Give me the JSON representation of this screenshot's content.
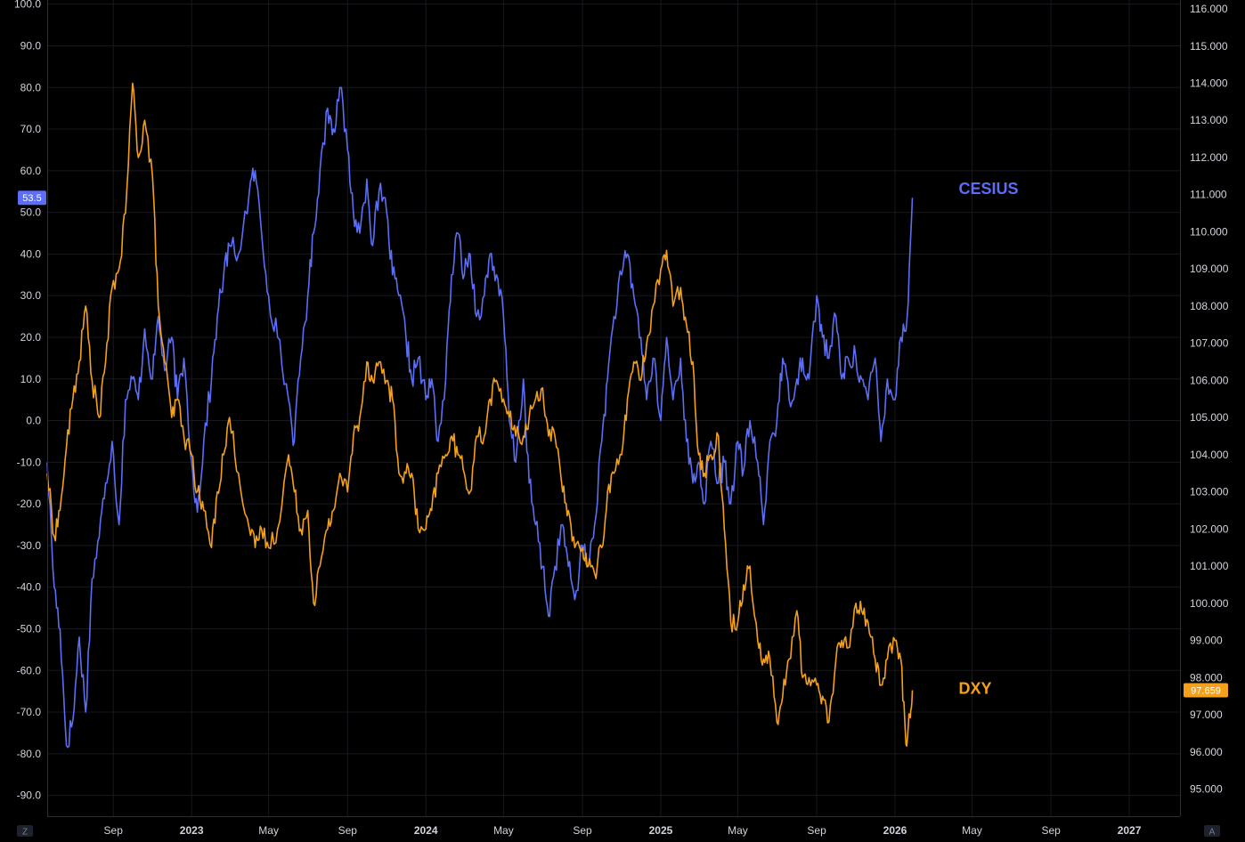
{
  "chart_data": {
    "type": "line",
    "title": "",
    "xlabel": "",
    "ylabel": "",
    "x_ticks": [
      "Sep",
      "2023",
      "May",
      "Sep",
      "2024",
      "May",
      "Sep",
      "2025",
      "May",
      "Sep",
      "2026",
      "May",
      "Sep",
      "2027"
    ],
    "x_tick_dates": [
      "2022-09-01",
      "2023-01-01",
      "2023-05-01",
      "2023-09-01",
      "2024-01-01",
      "2024-05-01",
      "2024-09-01",
      "2025-01-01",
      "2025-05-01",
      "2025-09-01",
      "2026-01-01",
      "2026-05-01",
      "2026-09-01",
      "2027-01-01"
    ],
    "xlim": [
      "2022-05-21",
      "2027-03-21"
    ],
    "left_axis": {
      "ticks": [
        "100.0",
        "90.0",
        "80.0",
        "70.0",
        "60.0",
        "50.0",
        "40.0",
        "30.0",
        "20.0",
        "10.0",
        "0.0",
        "-10.0",
        "-20.0",
        "-30.0",
        "-40.0",
        "-50.0",
        "-60.0",
        "-70.0",
        "-80.0",
        "-90.0"
      ],
      "ylim": [
        -95,
        101
      ]
    },
    "right_axis": {
      "ticks": [
        "116.000",
        "115.000",
        "114.000",
        "113.000",
        "112.000",
        "111.000",
        "110.000",
        "109.000",
        "108.000",
        "107.000",
        "106.000",
        "105.000",
        "104.000",
        "103.000",
        "102.000",
        "101.000",
        "100.000",
        "99.000",
        "98.000",
        "97.000",
        "96.000",
        "95.000"
      ],
      "ylim": [
        94.27,
        116.24
      ]
    },
    "grid": true,
    "series": [
      {
        "name": "CESIUS",
        "axis": "left",
        "color": "#5b6ef5",
        "last_value_label": "53.5",
        "points": [
          [
            "2022-05-21",
            -10
          ],
          [
            "2022-06-01",
            -40
          ],
          [
            "2022-06-10",
            -50
          ],
          [
            "2022-06-20",
            -78
          ],
          [
            "2022-06-30",
            -72
          ],
          [
            "2022-07-10",
            -52
          ],
          [
            "2022-07-20",
            -70
          ],
          [
            "2022-07-30",
            -38
          ],
          [
            "2022-08-10",
            -28
          ],
          [
            "2022-08-20",
            -15
          ],
          [
            "2022-08-30",
            -5
          ],
          [
            "2022-09-10",
            -25
          ],
          [
            "2022-09-20",
            5
          ],
          [
            "2022-10-01",
            10
          ],
          [
            "2022-10-10",
            5
          ],
          [
            "2022-10-20",
            22
          ],
          [
            "2022-11-01",
            10
          ],
          [
            "2022-11-10",
            25
          ],
          [
            "2022-11-20",
            12
          ],
          [
            "2022-12-01",
            20
          ],
          [
            "2022-12-10",
            5
          ],
          [
            "2022-12-20",
            15
          ],
          [
            "2023-01-01",
            -10
          ],
          [
            "2023-01-10",
            -22
          ],
          [
            "2023-01-20",
            -5
          ],
          [
            "2023-02-01",
            10
          ],
          [
            "2023-02-10",
            25
          ],
          [
            "2023-02-20",
            35
          ],
          [
            "2023-03-01",
            42
          ],
          [
            "2023-03-15",
            40
          ],
          [
            "2023-04-01",
            55
          ],
          [
            "2023-04-10",
            60
          ],
          [
            "2023-04-20",
            45
          ],
          [
            "2023-05-01",
            30
          ],
          [
            "2023-05-15",
            20
          ],
          [
            "2023-06-01",
            5
          ],
          [
            "2023-06-10",
            -5
          ],
          [
            "2023-06-20",
            15
          ],
          [
            "2023-07-01",
            30
          ],
          [
            "2023-07-10",
            45
          ],
          [
            "2023-07-20",
            60
          ],
          [
            "2023-08-01",
            75
          ],
          [
            "2023-08-10",
            70
          ],
          [
            "2023-08-20",
            80
          ],
          [
            "2023-09-01",
            65
          ],
          [
            "2023-09-10",
            50
          ],
          [
            "2023-09-20",
            45
          ],
          [
            "2023-10-01",
            58
          ],
          [
            "2023-10-10",
            42
          ],
          [
            "2023-10-20",
            55
          ],
          [
            "2023-11-01",
            50
          ],
          [
            "2023-11-10",
            35
          ],
          [
            "2023-11-20",
            30
          ],
          [
            "2023-12-01",
            20
          ],
          [
            "2023-12-10",
            10
          ],
          [
            "2023-12-20",
            15
          ],
          [
            "2024-01-01",
            5
          ],
          [
            "2024-01-10",
            10
          ],
          [
            "2024-01-20",
            -5
          ],
          [
            "2024-02-01",
            10
          ],
          [
            "2024-02-10",
            35
          ],
          [
            "2024-02-20",
            45
          ],
          [
            "2024-03-01",
            35
          ],
          [
            "2024-03-10",
            40
          ],
          [
            "2024-03-20",
            25
          ],
          [
            "2024-04-01",
            30
          ],
          [
            "2024-04-10",
            40
          ],
          [
            "2024-04-20",
            35
          ],
          [
            "2024-05-01",
            25
          ],
          [
            "2024-05-10",
            0
          ],
          [
            "2024-05-20",
            -10
          ],
          [
            "2024-06-01",
            10
          ],
          [
            "2024-06-10",
            -15
          ],
          [
            "2024-06-20",
            -25
          ],
          [
            "2024-07-01",
            -35
          ],
          [
            "2024-07-10",
            -47
          ],
          [
            "2024-07-20",
            -35
          ],
          [
            "2024-08-01",
            -25
          ],
          [
            "2024-08-10",
            -35
          ],
          [
            "2024-08-20",
            -43
          ],
          [
            "2024-09-01",
            -30
          ],
          [
            "2024-09-10",
            -35
          ],
          [
            "2024-09-20",
            -25
          ],
          [
            "2024-10-01",
            -5
          ],
          [
            "2024-10-10",
            10
          ],
          [
            "2024-10-20",
            25
          ],
          [
            "2024-11-01",
            35
          ],
          [
            "2024-11-10",
            40
          ],
          [
            "2024-11-20",
            30
          ],
          [
            "2024-12-01",
            20
          ],
          [
            "2024-12-10",
            5
          ],
          [
            "2024-12-20",
            15
          ],
          [
            "2025-01-01",
            0
          ],
          [
            "2025-01-10",
            20
          ],
          [
            "2025-01-20",
            5
          ],
          [
            "2025-02-01",
            15
          ],
          [
            "2025-02-10",
            -5
          ],
          [
            "2025-02-20",
            -15
          ],
          [
            "2025-03-01",
            -10
          ],
          [
            "2025-03-10",
            -20
          ],
          [
            "2025-03-20",
            -5
          ],
          [
            "2025-04-01",
            -15
          ],
          [
            "2025-04-10",
            -10
          ],
          [
            "2025-04-20",
            -20
          ],
          [
            "2025-05-01",
            -5
          ],
          [
            "2025-05-10",
            -12
          ],
          [
            "2025-05-20",
            0
          ],
          [
            "2025-06-01",
            -10
          ],
          [
            "2025-06-10",
            -25
          ],
          [
            "2025-06-20",
            -5
          ],
          [
            "2025-07-01",
            0
          ],
          [
            "2025-07-10",
            15
          ],
          [
            "2025-07-20",
            5
          ],
          [
            "2025-08-01",
            10
          ],
          [
            "2025-08-10",
            15
          ],
          [
            "2025-08-20",
            10
          ],
          [
            "2025-09-01",
            30
          ],
          [
            "2025-09-10",
            20
          ],
          [
            "2025-09-20",
            15
          ],
          [
            "2025-10-01",
            25
          ],
          [
            "2025-10-10",
            10
          ],
          [
            "2025-10-20",
            15
          ],
          [
            "2025-11-01",
            15
          ],
          [
            "2025-11-10",
            10
          ],
          [
            "2025-11-20",
            5
          ],
          [
            "2025-12-01",
            15
          ],
          [
            "2025-12-10",
            -5
          ],
          [
            "2025-12-20",
            10
          ],
          [
            "2026-01-01",
            5
          ],
          [
            "2026-01-10",
            20
          ],
          [
            "2026-01-20",
            25
          ],
          [
            "2026-01-28",
            53.5
          ]
        ]
      },
      {
        "name": "DXY",
        "axis": "right",
        "color": "#f5a019",
        "last_value_label": "97.659",
        "points": [
          [
            "2022-05-21",
            103.5
          ],
          [
            "2022-06-01",
            101.8
          ],
          [
            "2022-06-10",
            102.5
          ],
          [
            "2022-06-20",
            104.2
          ],
          [
            "2022-06-30",
            105.5
          ],
          [
            "2022-07-10",
            106.5
          ],
          [
            "2022-07-20",
            108.0
          ],
          [
            "2022-07-30",
            106.0
          ],
          [
            "2022-08-10",
            105.0
          ],
          [
            "2022-08-20",
            106.5
          ],
          [
            "2022-08-30",
            108.5
          ],
          [
            "2022-09-10",
            109.0
          ],
          [
            "2022-09-20",
            110.5
          ],
          [
            "2022-10-01",
            114.0
          ],
          [
            "2022-10-10",
            112.0
          ],
          [
            "2022-10-20",
            113.0
          ],
          [
            "2022-11-01",
            111.5
          ],
          [
            "2022-11-10",
            108.0
          ],
          [
            "2022-11-20",
            106.5
          ],
          [
            "2022-12-01",
            105.0
          ],
          [
            "2022-12-10",
            105.5
          ],
          [
            "2022-12-20",
            104.5
          ],
          [
            "2023-01-01",
            104.0
          ],
          [
            "2023-01-10",
            103.0
          ],
          [
            "2023-01-20",
            102.5
          ],
          [
            "2023-02-01",
            101.5
          ],
          [
            "2023-02-10",
            103.0
          ],
          [
            "2023-02-20",
            104.0
          ],
          [
            "2023-03-01",
            105.0
          ],
          [
            "2023-03-15",
            103.5
          ],
          [
            "2023-04-01",
            102.0
          ],
          [
            "2023-04-10",
            101.5
          ],
          [
            "2023-04-20",
            102.0
          ],
          [
            "2023-05-01",
            101.5
          ],
          [
            "2023-05-15",
            102.0
          ],
          [
            "2023-06-01",
            104.0
          ],
          [
            "2023-06-10",
            103.0
          ],
          [
            "2023-06-20",
            102.0
          ],
          [
            "2023-07-01",
            102.5
          ],
          [
            "2023-07-10",
            100.0
          ],
          [
            "2023-07-20",
            101.0
          ],
          [
            "2023-08-01",
            102.0
          ],
          [
            "2023-08-10",
            102.5
          ],
          [
            "2023-08-20",
            103.5
          ],
          [
            "2023-09-01",
            103.0
          ],
          [
            "2023-09-10",
            104.5
          ],
          [
            "2023-09-20",
            105.0
          ],
          [
            "2023-10-01",
            106.5
          ],
          [
            "2023-10-10",
            106.0
          ],
          [
            "2023-10-20",
            106.5
          ],
          [
            "2023-11-01",
            106.0
          ],
          [
            "2023-11-10",
            105.5
          ],
          [
            "2023-11-20",
            103.5
          ],
          [
            "2023-12-01",
            103.5
          ],
          [
            "2023-12-10",
            103.5
          ],
          [
            "2023-12-20",
            102.0
          ],
          [
            "2024-01-01",
            102.0
          ],
          [
            "2024-01-10",
            102.5
          ],
          [
            "2024-01-20",
            103.5
          ],
          [
            "2024-02-01",
            104.0
          ],
          [
            "2024-02-10",
            104.5
          ],
          [
            "2024-02-20",
            104.0
          ],
          [
            "2024-03-01",
            103.5
          ],
          [
            "2024-03-10",
            103.0
          ],
          [
            "2024-03-20",
            104.5
          ],
          [
            "2024-04-01",
            104.5
          ],
          [
            "2024-04-10",
            105.5
          ],
          [
            "2024-04-20",
            106.0
          ],
          [
            "2024-05-01",
            105.5
          ],
          [
            "2024-05-10",
            105.0
          ],
          [
            "2024-05-20",
            104.5
          ],
          [
            "2024-06-01",
            104.5
          ],
          [
            "2024-06-10",
            105.0
          ],
          [
            "2024-06-20",
            105.5
          ],
          [
            "2024-07-01",
            105.8
          ],
          [
            "2024-07-10",
            104.5
          ],
          [
            "2024-07-20",
            104.5
          ],
          [
            "2024-08-01",
            103.0
          ],
          [
            "2024-08-10",
            102.5
          ],
          [
            "2024-08-20",
            101.5
          ],
          [
            "2024-09-01",
            101.5
          ],
          [
            "2024-09-10",
            101.0
          ],
          [
            "2024-09-20",
            100.8
          ],
          [
            "2024-10-01",
            101.5
          ],
          [
            "2024-10-10",
            103.0
          ],
          [
            "2024-10-20",
            103.5
          ],
          [
            "2024-11-01",
            104.0
          ],
          [
            "2024-11-10",
            105.5
          ],
          [
            "2024-11-20",
            106.5
          ],
          [
            "2024-12-01",
            106.0
          ],
          [
            "2024-12-10",
            107.0
          ],
          [
            "2024-12-20",
            108.0
          ],
          [
            "2025-01-01",
            109.0
          ],
          [
            "2025-01-10",
            109.5
          ],
          [
            "2025-01-20",
            108.0
          ],
          [
            "2025-02-01",
            108.5
          ],
          [
            "2025-02-10",
            107.5
          ],
          [
            "2025-02-20",
            106.5
          ],
          [
            "2025-03-01",
            104.0
          ],
          [
            "2025-03-10",
            103.5
          ],
          [
            "2025-03-20",
            104.0
          ],
          [
            "2025-04-01",
            104.5
          ],
          [
            "2025-04-10",
            102.0
          ],
          [
            "2025-04-20",
            99.5
          ],
          [
            "2025-05-01",
            99.5
          ],
          [
            "2025-05-10",
            100.5
          ],
          [
            "2025-05-20",
            101.0
          ],
          [
            "2025-06-01",
            99.0
          ],
          [
            "2025-06-10",
            98.5
          ],
          [
            "2025-06-20",
            98.5
          ],
          [
            "2025-07-01",
            96.8
          ],
          [
            "2025-07-10",
            97.5
          ],
          [
            "2025-07-20",
            98.5
          ],
          [
            "2025-08-01",
            99.8
          ],
          [
            "2025-08-10",
            98.0
          ],
          [
            "2025-08-20",
            98.0
          ],
          [
            "2025-09-01",
            97.8
          ],
          [
            "2025-09-10",
            97.5
          ],
          [
            "2025-09-20",
            96.8
          ],
          [
            "2025-10-01",
            98.5
          ],
          [
            "2025-10-10",
            99.0
          ],
          [
            "2025-10-20",
            98.8
          ],
          [
            "2025-11-01",
            100.0
          ],
          [
            "2025-11-10",
            99.8
          ],
          [
            "2025-11-20",
            99.5
          ],
          [
            "2025-12-01",
            98.5
          ],
          [
            "2025-12-10",
            97.8
          ],
          [
            "2025-12-20",
            98.5
          ],
          [
            "2026-01-01",
            99.0
          ],
          [
            "2026-01-10",
            98.5
          ],
          [
            "2026-01-18",
            96.2
          ],
          [
            "2026-01-24",
            97.0
          ],
          [
            "2026-01-28",
            97.659
          ]
        ]
      }
    ]
  },
  "axis_buttons": {
    "left": "Z",
    "right": "A"
  }
}
